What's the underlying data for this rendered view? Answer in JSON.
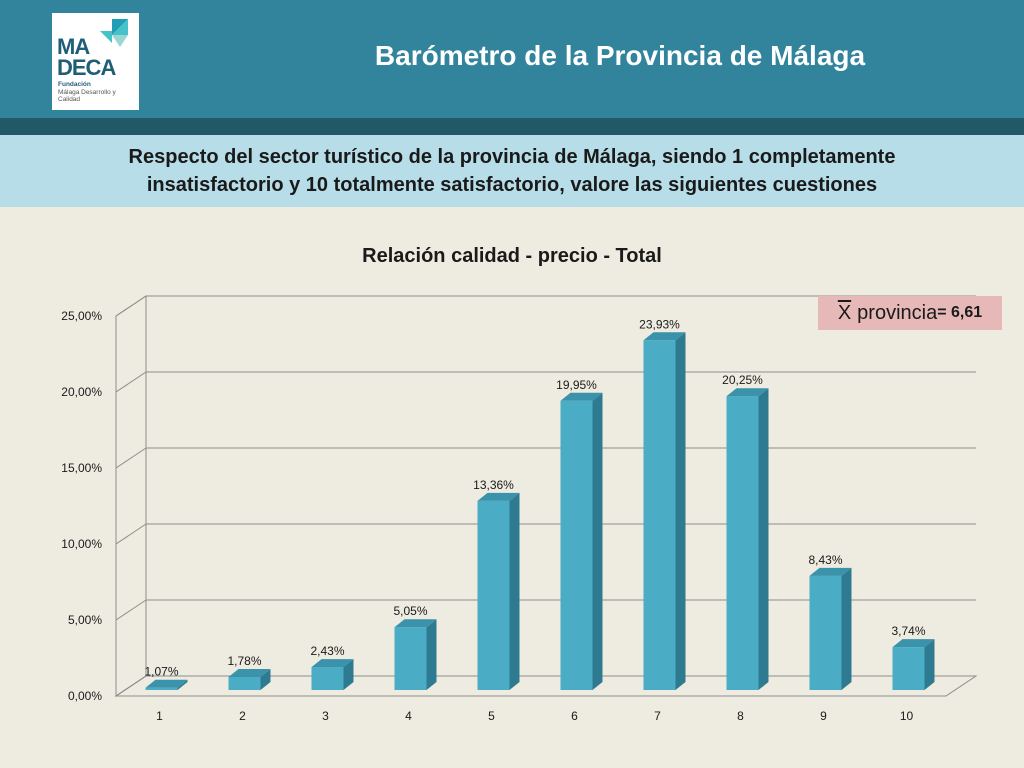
{
  "header": {
    "title": "Barómetro de la Provincia de Málaga",
    "logo": {
      "line1": "MA",
      "line2": "DECA",
      "sub_title": "Fundación",
      "sub_text": "Málaga Desarrollo y Calidad",
      "colors": [
        "#1f9fb5",
        "#47c2c9",
        "#9ad7d3",
        "#1f5e76"
      ]
    },
    "colors": {
      "header_bg": "#31849b",
      "strip_bg": "#215968"
    }
  },
  "question": {
    "text": "Respecto del sector turístico de la provincia de Málaga, siendo 1 completamente insatisfactorio y 10 totalmente satisfactorio, valore las siguientes cuestiones",
    "bg": "#b6dde8"
  },
  "mean_box": {
    "symbol": "X",
    "label": "provincia",
    "value": "= 6,61",
    "bg": "#e6b9b8"
  },
  "chart_data": {
    "type": "bar",
    "title": "Relación calidad - precio - Total",
    "categories": [
      "1",
      "2",
      "3",
      "4",
      "5",
      "6",
      "7",
      "8",
      "9",
      "10"
    ],
    "values": [
      1.07,
      1.78,
      2.43,
      5.05,
      13.36,
      19.95,
      23.93,
      20.25,
      8.43,
      3.74
    ],
    "data_labels": [
      "1,07%",
      "1,78%",
      "2,43%",
      "5,05%",
      "13,36%",
      "19,95%",
      "23,93%",
      "20,25%",
      "8,43%",
      "3,74%"
    ],
    "y_ticks": [
      0,
      5,
      10,
      15,
      20,
      25
    ],
    "y_tick_labels": [
      "0,00%",
      "5,00%",
      "10,00%",
      "15,00%",
      "20,00%",
      "25,00%"
    ],
    "ylim": [
      0,
      25
    ],
    "grid": true,
    "bar_color": "#4bacc6",
    "bar_side_color": "#2e7b91",
    "bar_top_color": "#3a92ab"
  }
}
